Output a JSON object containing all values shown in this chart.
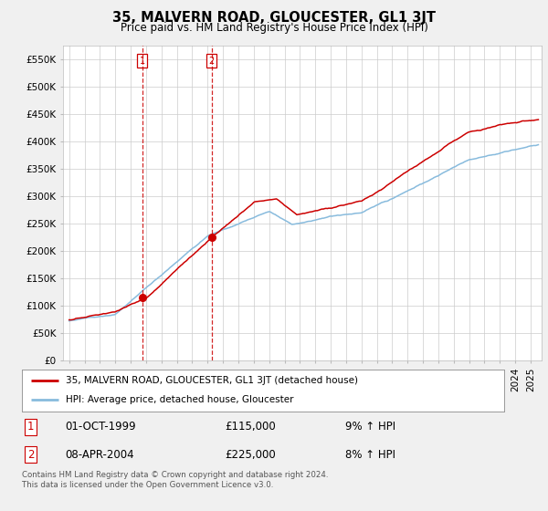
{
  "title": "35, MALVERN ROAD, GLOUCESTER, GL1 3JT",
  "subtitle": "Price paid vs. HM Land Registry's House Price Index (HPI)",
  "ylim": [
    0,
    575000
  ],
  "yticks": [
    0,
    50000,
    100000,
    150000,
    200000,
    250000,
    300000,
    350000,
    400000,
    450000,
    500000,
    550000
  ],
  "ytick_labels": [
    "£0",
    "£50K",
    "£100K",
    "£150K",
    "£200K",
    "£250K",
    "£300K",
    "£350K",
    "£400K",
    "£450K",
    "£500K",
    "£550K"
  ],
  "line1_color": "#cc0000",
  "line2_color": "#88bbdd",
  "sale1_date": "01-OCT-1999",
  "sale1_price": 115000,
  "sale1_pct": "9% ↑ HPI",
  "sale2_date": "08-APR-2004",
  "sale2_price": 225000,
  "sale2_pct": "8% ↑ HPI",
  "legend_label1": "35, MALVERN ROAD, GLOUCESTER, GL1 3JT (detached house)",
  "legend_label2": "HPI: Average price, detached house, Gloucester",
  "footnote": "Contains HM Land Registry data © Crown copyright and database right 2024.\nThis data is licensed under the Open Government Licence v3.0.",
  "background_color": "#f0f0f0",
  "plot_bg_color": "#ffffff",
  "grid_color": "#cccccc",
  "vline1_x_year": 1999.75,
  "vline2_x_year": 2004.27,
  "sale1_marker_x": 1999.75,
  "sale1_marker_y": 115000,
  "sale2_marker_x": 2004.27,
  "sale2_marker_y": 225000,
  "xlim_left": 1994.6,
  "xlim_right": 2025.7
}
